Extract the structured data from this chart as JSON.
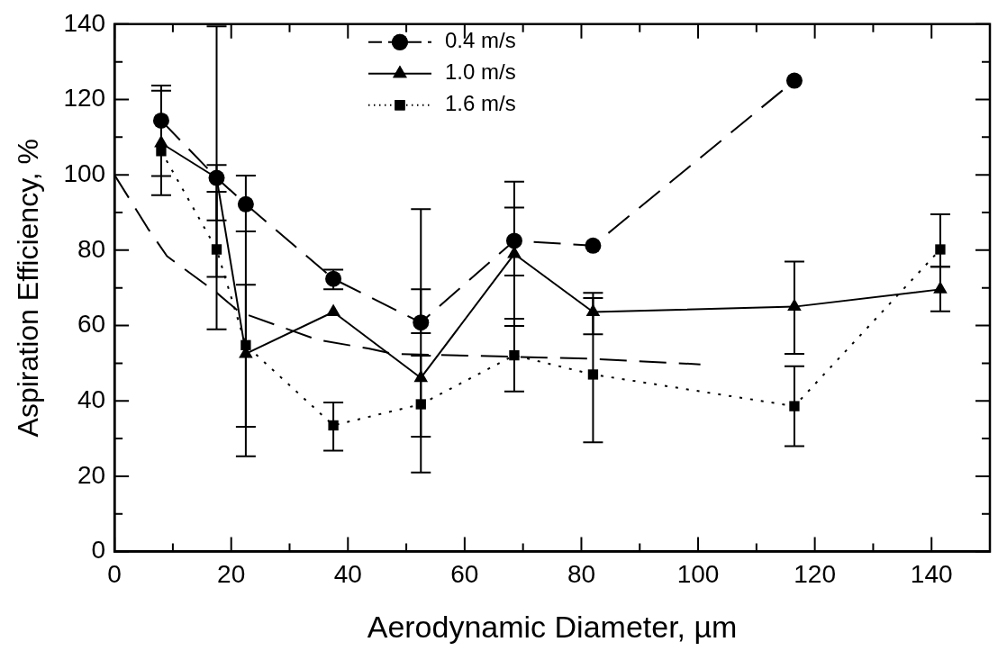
{
  "chart_data": {
    "type": "line",
    "xlabel": "Aerodynamic Diameter, µm",
    "ylabel": "Aspiration Efficiency, %",
    "xlim": [
      0,
      150
    ],
    "ylim": [
      0,
      140
    ],
    "xticks": [
      0,
      {
        "value": 10,
        "label": null
      },
      20,
      {
        "value": 30,
        "label": null
      },
      40,
      {
        "value": 50,
        "label": null
      },
      60,
      {
        "value": 70,
        "label": null
      },
      80,
      {
        "value": 90,
        "label": null
      },
      100,
      {
        "value": 110,
        "label": null
      },
      120,
      {
        "value": 130,
        "label": null
      },
      140
    ],
    "yticks": [
      0,
      {
        "value": 10,
        "label": null
      },
      20,
      {
        "value": 30,
        "label": null
      },
      40,
      {
        "value": 50,
        "label": null
      },
      60,
      {
        "value": 70,
        "label": null
      },
      80,
      {
        "value": 90,
        "label": null
      },
      100,
      {
        "value": 110,
        "label": null
      },
      120,
      {
        "value": 130,
        "label": null
      },
      140
    ],
    "legend": "top",
    "grid": false,
    "series": [
      {
        "name": "0.4 m/s",
        "color": "#000000",
        "marker": "circle",
        "line_style": "dashed",
        "x": [
          8,
          17.5,
          22.5,
          37.5,
          52.5,
          68.5,
          82,
          116.5
        ],
        "values": [
          114.4,
          99.2,
          92.2,
          72.4,
          60.8,
          82.5,
          81.2,
          125
        ],
        "errors": [
          [
            99.7,
            123.7
          ],
          [
            87.9,
            102.6
          ],
          [
            85,
            99.8
          ],
          [
            69.6,
            74.8
          ],
          [
            58,
            90.9
          ],
          [
            73.3,
            98.2
          ],
          null,
          null
        ]
      },
      {
        "name": "1.0 m/s",
        "color": "#000000",
        "marker": "triangle",
        "line_style": "solid",
        "x": [
          8,
          17.5,
          22.5,
          37.5,
          52.5,
          68.5,
          82,
          116.5,
          141.5
        ],
        "values": [
          108.4,
          99.2,
          52.5,
          63.6,
          46.1,
          79,
          63.6,
          65,
          69.6
        ],
        "errors": [
          [
            94.6,
            122.3
          ],
          [
            59,
            139.4
          ],
          [
            33.1,
            70.8
          ],
          null,
          [
            21,
            69.6
          ],
          [
            59.9,
            91.3
          ],
          [
            57.7,
            68.7
          ],
          [
            52.5,
            77
          ],
          [
            63.8,
            75.6
          ]
        ]
      },
      {
        "name": "1.6 m/s",
        "color": "#000000",
        "marker": "square",
        "line_style": "dotted",
        "x": [
          8,
          17.5,
          22.5,
          37.5,
          52.5,
          68.5,
          82,
          116.5,
          141.5
        ],
        "values": [
          106.3,
          80.2,
          54.8,
          33.5,
          39.1,
          52.1,
          47,
          38.6,
          80.2
        ],
        "errors": [
          null,
          [
            72.9,
            95.5
          ],
          [
            25.3,
            85
          ],
          [
            26.8,
            39.6
          ],
          [
            30.5,
            52
          ],
          [
            42.5,
            61.8
          ],
          [
            29,
            67.3
          ],
          [
            28,
            49.2
          ],
          [
            75.6,
            89.5
          ]
        ]
      },
      {
        "color": "#000000",
        "marker": "none",
        "line_style": "dashed",
        "x": [
          0,
          5.7,
          9,
          17.2,
          21.4,
          34.8,
          43.5,
          47.7,
          81.6,
          100.4
        ],
        "values": [
          100,
          85.8,
          78.4,
          69.1,
          63.6,
          56.2,
          53.9,
          52.5,
          51.2,
          49.7
        ]
      }
    ]
  }
}
